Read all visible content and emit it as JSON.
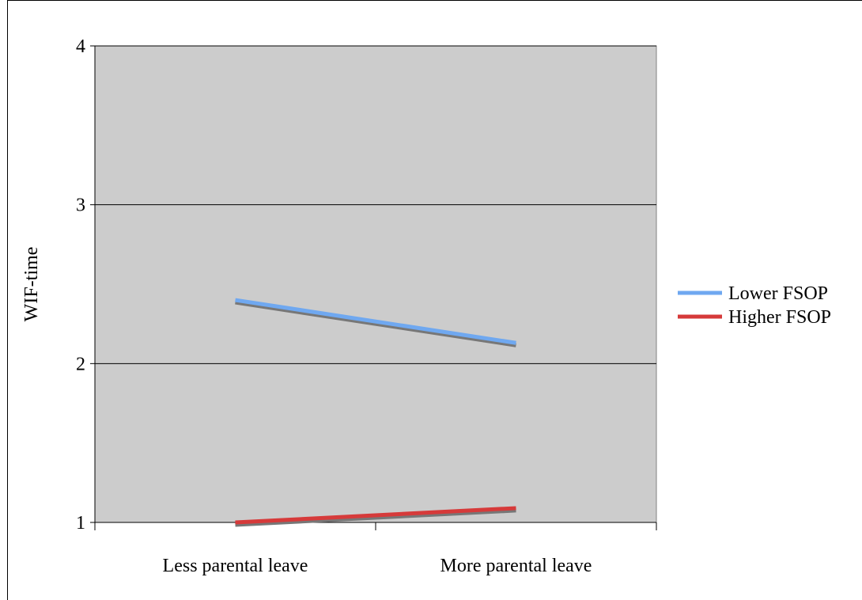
{
  "chart_data": {
    "type": "line",
    "title": "",
    "xlabel": "",
    "ylabel": "WIF-time",
    "categories": [
      "Less parental leave",
      "More parental leave"
    ],
    "ylim": [
      1,
      4
    ],
    "yticks": [
      "1",
      "2",
      "3",
      "4"
    ],
    "grid": true,
    "legend_position": "right",
    "plot_background": "#cccccc",
    "series": [
      {
        "name": "Lower FSOP",
        "values": [
          2.4,
          2.13
        ],
        "color": "#6fa8f0"
      },
      {
        "name": "Higher FSOP",
        "values": [
          1.0,
          1.09
        ],
        "color": "#d63a3a"
      }
    ]
  }
}
